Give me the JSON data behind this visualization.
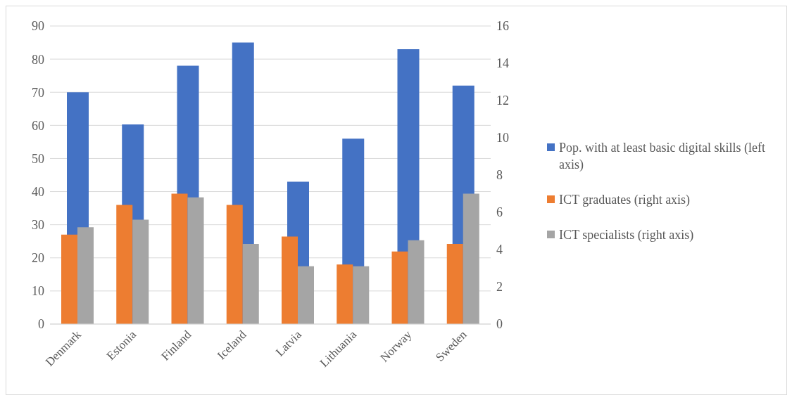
{
  "chart_data": {
    "type": "bar",
    "categories": [
      "Denmark",
      "Estonia",
      "Finland",
      "Iceland",
      "Latvia",
      "Lithuania",
      "Norway",
      "Sweden"
    ],
    "series": [
      {
        "name": "Pop. with at least basic digital skills (left axis)",
        "color": "#4472c4",
        "values": [
          70,
          60.3,
          78,
          85,
          43,
          56,
          83,
          72
        ]
      },
      {
        "name": "ICT graduates (right axis)",
        "color": "#ed7d31",
        "axis": "y2",
        "values": [
          4.8,
          6.4,
          7.0,
          6.4,
          4.7,
          3.2,
          3.9,
          4.3
        ]
      },
      {
        "name": "ICT specialists (right axis)",
        "color": "#a5a5a5",
        "axis": "y2",
        "values": [
          5.2,
          5.6,
          6.8,
          4.3,
          3.1,
          3.1,
          4.5,
          7.0
        ]
      }
    ],
    "ylim": [
      0,
      90
    ],
    "yticks": [
      0,
      10,
      20,
      30,
      40,
      50,
      60,
      70,
      80,
      90
    ],
    "y2lim": [
      0,
      16
    ],
    "y2ticks": [
      0,
      2,
      4,
      6,
      8,
      10,
      12,
      14,
      16
    ],
    "grid": "y",
    "legend": "right"
  }
}
